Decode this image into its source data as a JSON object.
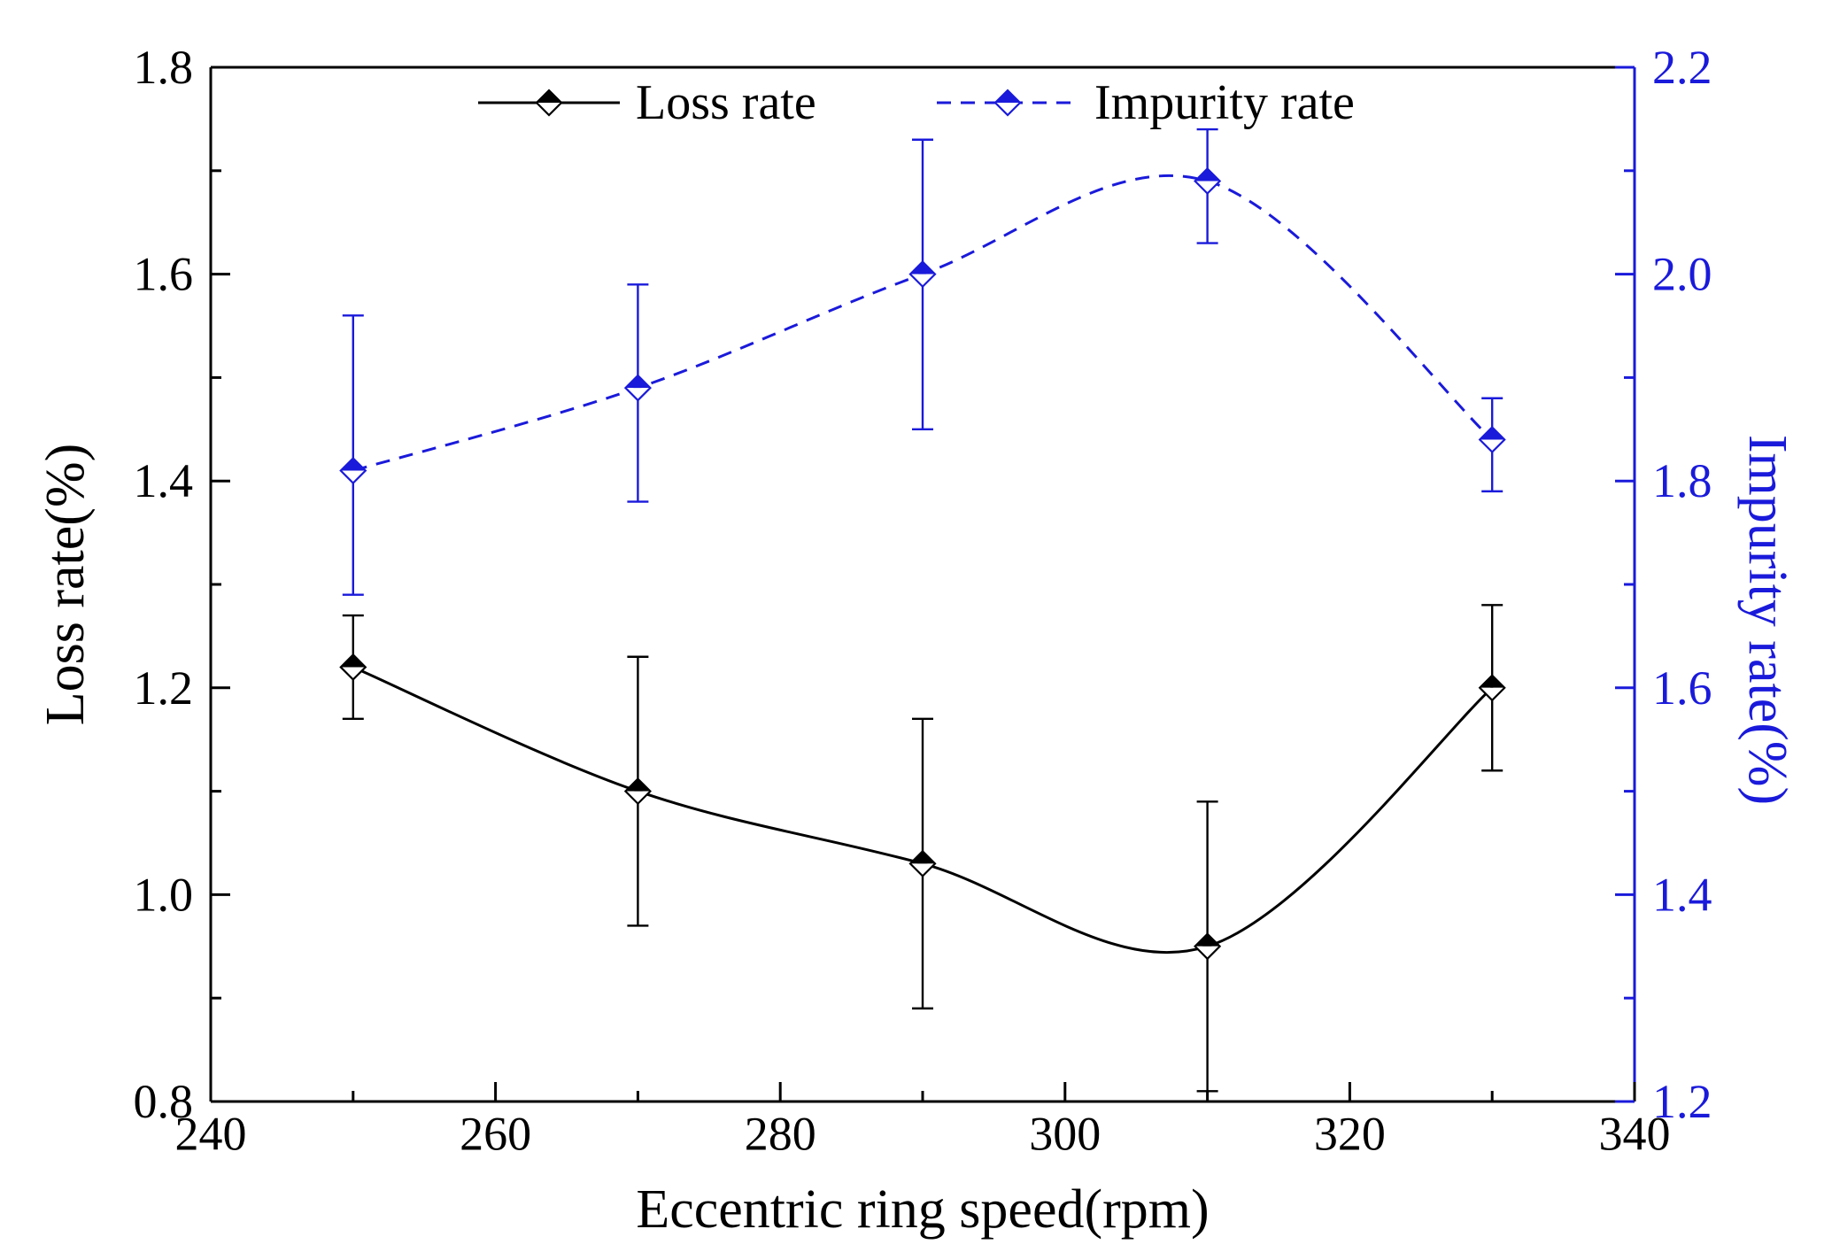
{
  "chart_data": {
    "type": "line",
    "title": "",
    "xlabel": "Eccentric ring speed(rpm)",
    "ylabel_left": "Loss rate(%)",
    "ylabel_right": "Impurity rate(%)",
    "xlim": [
      240,
      340
    ],
    "xticks": [
      240,
      260,
      280,
      300,
      320,
      340
    ],
    "x_minor_step": 10,
    "ylim_left": [
      0.8,
      1.8
    ],
    "yticks_left": [
      0.8,
      1.0,
      1.2,
      1.4,
      1.6,
      1.8
    ],
    "ylim_right": [
      1.2,
      2.2
    ],
    "yticks_right": [
      1.2,
      1.4,
      1.6,
      1.8,
      2.0,
      2.2
    ],
    "y_minor_step": 0.1,
    "grid": false,
    "legend_position": "top-center-inside",
    "axis_colors": {
      "left": "#000000",
      "bottom": "#000000",
      "top": "#000000",
      "right": "#1a1adb"
    },
    "series": [
      {
        "name": "Loss rate",
        "axis": "left",
        "color": "#000000",
        "line_style": "solid",
        "marker": "diamond-half-filled",
        "x": [
          250,
          270,
          290,
          310,
          330
        ],
        "y": [
          1.22,
          1.1,
          1.03,
          0.95,
          1.2
        ],
        "yerr_up": [
          0.05,
          0.13,
          0.14,
          0.14,
          0.08
        ],
        "yerr_down": [
          0.05,
          0.13,
          0.14,
          0.14,
          0.08
        ]
      },
      {
        "name": "Impurity rate",
        "axis": "right",
        "color": "#1a1adb",
        "line_style": "dashed",
        "marker": "diamond-half-filled",
        "x": [
          250,
          270,
          290,
          310,
          330
        ],
        "y": [
          1.81,
          1.89,
          2.0,
          2.09,
          1.84
        ],
        "yerr_up": [
          0.15,
          0.1,
          0.13,
          0.05,
          0.04
        ],
        "yerr_down": [
          0.12,
          0.11,
          0.15,
          0.06,
          0.05
        ]
      }
    ]
  }
}
